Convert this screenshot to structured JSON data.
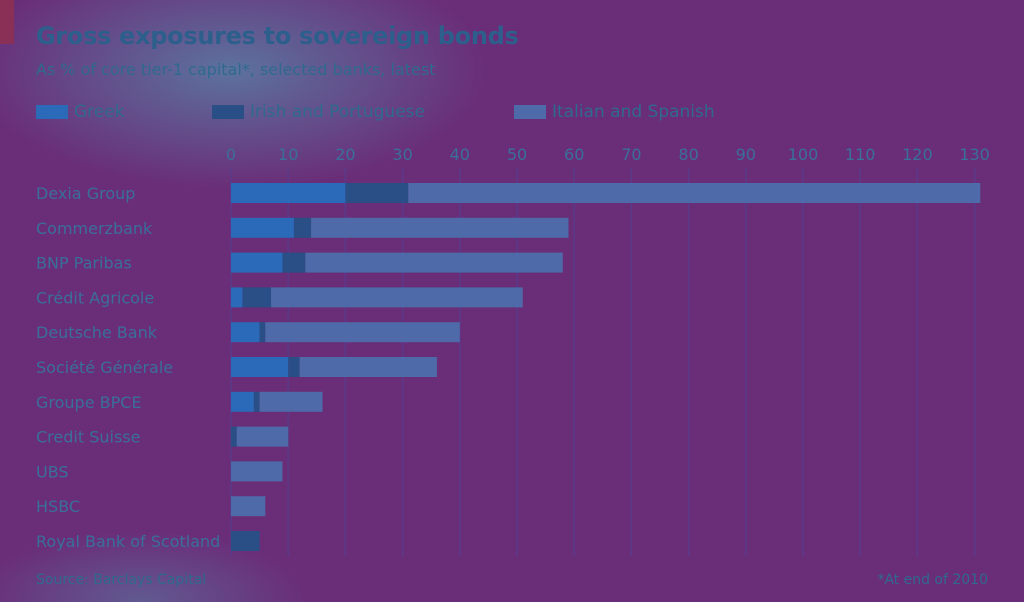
{
  "colors": {
    "greek": "#2a6ab8",
    "irish_portuguese": "#2a4f86",
    "italian_spanish": "#4e6aa8",
    "gridline": "#5a3a8a",
    "text": "#3a6f9a"
  },
  "chart_data": {
    "type": "bar",
    "orientation": "horizontal",
    "stacked": true,
    "title": "Gross exposures to sovereign bonds",
    "subtitle": "As % of core tier-1 capital*, selected banks, latest",
    "categories": [
      "Dexia Group",
      "Commerzbank",
      "BNP Paribas",
      "Crédit Agricole",
      "Deutsche Bank",
      "Société Générale",
      "Groupe BPCE",
      "Credit Suisse",
      "UBS",
      "HSBC",
      "Royal Bank of Scotland"
    ],
    "series": [
      {
        "name": "Greek",
        "values": [
          20,
          11,
          9,
          2,
          5,
          10,
          4,
          0,
          0,
          0,
          0
        ]
      },
      {
        "name": "Irish and Portuguese",
        "values": [
          11,
          3,
          4,
          5,
          1,
          2,
          1,
          1,
          0,
          0,
          5
        ]
      },
      {
        "name": "Italian and Spanish",
        "values": [
          100,
          45,
          45,
          44,
          34,
          24,
          11,
          9,
          9,
          6,
          0
        ]
      }
    ],
    "xlim": [
      0,
      130
    ],
    "xticks": [
      0,
      10,
      20,
      30,
      40,
      50,
      60,
      70,
      80,
      90,
      100,
      110,
      120,
      130
    ],
    "legend_position": "top",
    "grid": true
  },
  "footer": {
    "source": "Source: Barclays Capital",
    "note": "*At end of 2010"
  }
}
